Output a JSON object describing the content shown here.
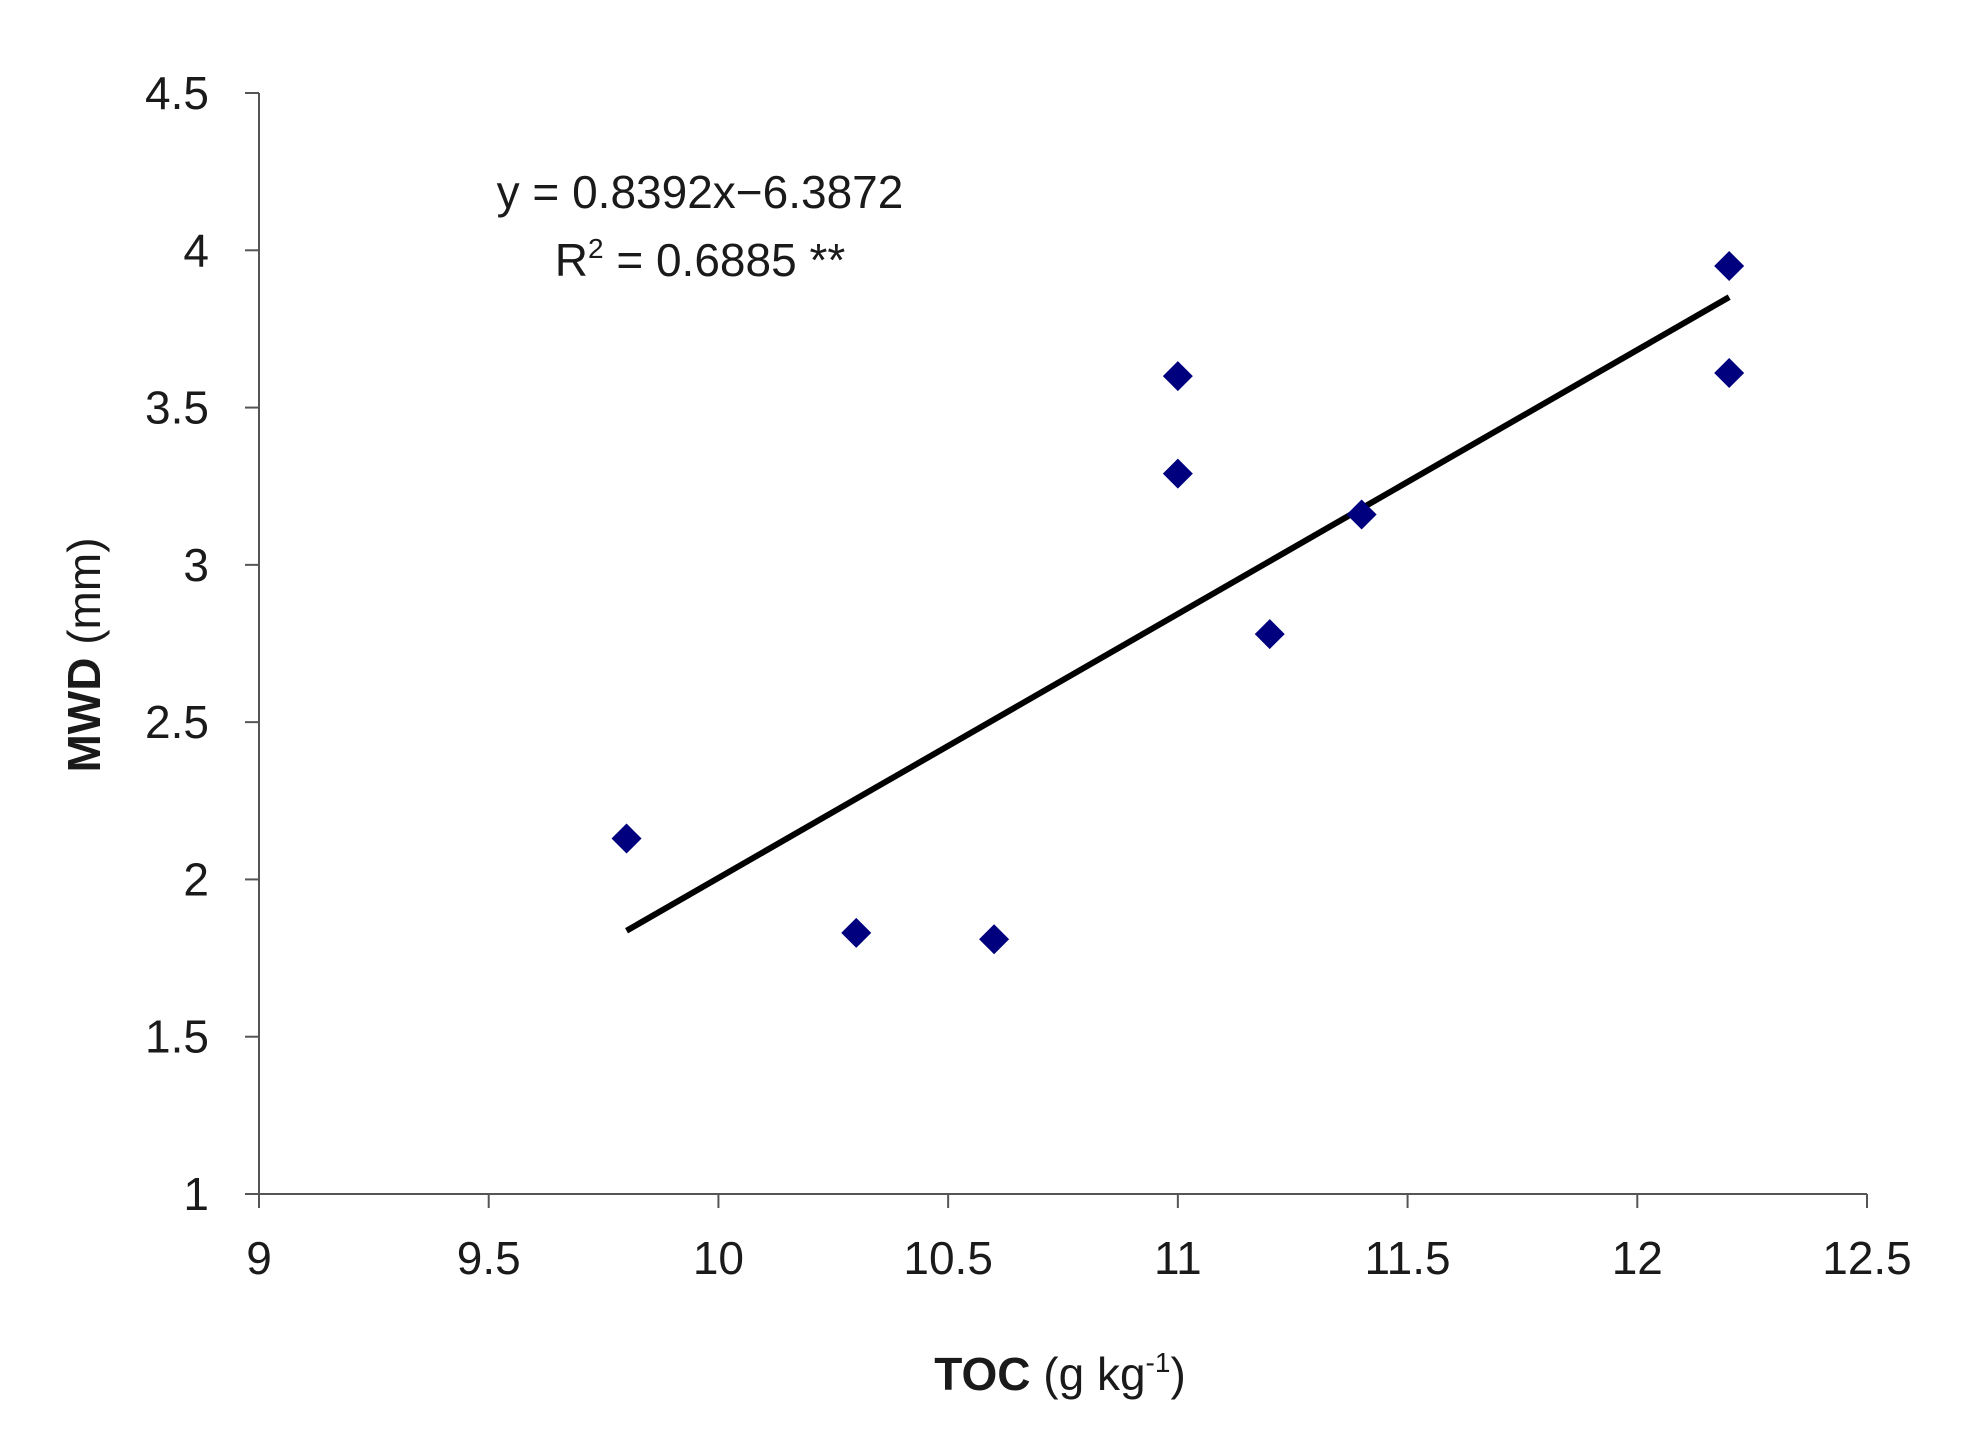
{
  "chart_data": {
    "type": "scatter",
    "title": "",
    "xlabel_bold": "TOC",
    "xlabel_rest": " (g kg",
    "xlabel_sup": "-1",
    "xlabel_close": ")",
    "ylabel_bold": "MWD",
    "ylabel_rest": " (mm)",
    "xlim": [
      9,
      12.5
    ],
    "ylim": [
      1,
      4.5
    ],
    "xticks": [
      "9",
      "9.5",
      "10",
      "10.5",
      "11",
      "11.5",
      "12",
      "12.5"
    ],
    "yticks": [
      "1",
      "1.5",
      "2",
      "2.5",
      "3",
      "3.5",
      "4",
      "4.5"
    ],
    "grid": false,
    "marker": "diamond",
    "marker_color": "#00007f",
    "line_color": "#000000",
    "points": [
      {
        "x": 9.8,
        "y": 2.13
      },
      {
        "x": 10.3,
        "y": 1.83
      },
      {
        "x": 10.6,
        "y": 1.81
      },
      {
        "x": 11.0,
        "y": 3.6
      },
      {
        "x": 11.0,
        "y": 3.29
      },
      {
        "x": 11.2,
        "y": 2.78
      },
      {
        "x": 11.4,
        "y": 3.16
      },
      {
        "x": 12.2,
        "y": 3.95
      },
      {
        "x": 12.2,
        "y": 3.61
      }
    ],
    "trendline": {
      "slope": 0.8392,
      "intercept": -6.3872,
      "x_range": [
        9.8,
        12.2
      ]
    },
    "annotation": {
      "equation": "y = 0.8392x−6.3872",
      "r2_prefix": "R",
      "r2_sup": "2",
      "r2_rest": " = 0.6885 **"
    }
  }
}
